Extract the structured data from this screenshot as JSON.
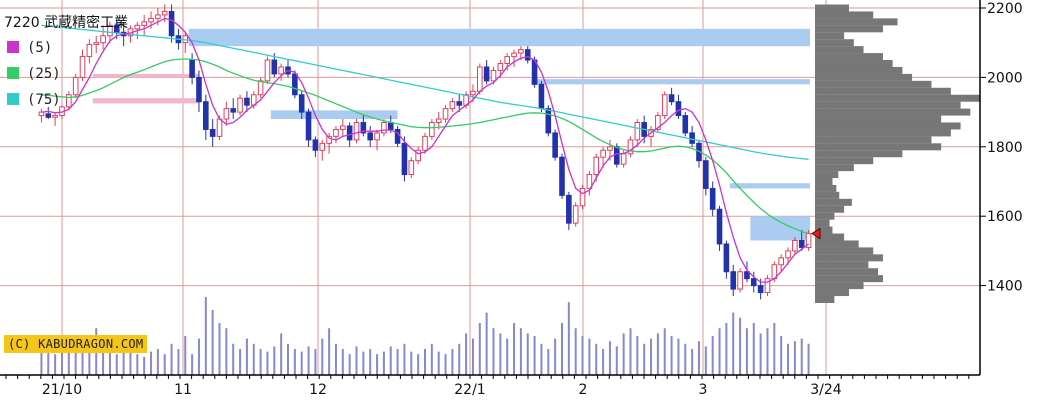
{
  "header": {
    "title": "7220 武蔵精密工業"
  },
  "legend": [
    {
      "label": "(5)",
      "color": "#cc33cc"
    },
    {
      "label": "(25)",
      "color": "#33cc66"
    },
    {
      "label": "(75)",
      "color": "#33cccc"
    }
  ],
  "credit": "(C) KABUDRAGON.COM",
  "colors": {
    "up_candle": "#e0405a",
    "down_candle": "#2233aa",
    "ma5": "#cc33cc",
    "ma25": "#33cc66",
    "ma75": "#33cccc",
    "resistance_band": "#aaccf0",
    "support_band": "#f5b5cc",
    "volume_profile": "#777777",
    "volume_bar": "#8888cc",
    "grid": "#dd9999",
    "current_marker": "#e02020"
  },
  "chart_data": {
    "type": "candlestick",
    "title": "7220 武蔵精密工業",
    "y_axis": {
      "position": "right",
      "ticks": [
        1400,
        1600,
        1800,
        2000,
        2200
      ],
      "range": [
        1150,
        2210
      ]
    },
    "x_tick_labels": [
      "21/10",
      "11",
      "12",
      "22/1",
      "2",
      "3",
      "3/24"
    ],
    "grid": true,
    "moving_averages": [
      "5",
      "25",
      "75"
    ],
    "candles_ohlc": [
      [
        1890,
        1910,
        1870,
        1900
      ],
      [
        1895,
        1915,
        1880,
        1885
      ],
      [
        1885,
        1900,
        1860,
        1890
      ],
      [
        1890,
        1920,
        1880,
        1915
      ],
      [
        1915,
        1960,
        1905,
        1950
      ],
      [
        1950,
        2010,
        1940,
        2000
      ],
      [
        2000,
        2080,
        1990,
        2060
      ],
      [
        2060,
        2110,
        2040,
        2095
      ],
      [
        2095,
        2120,
        2070,
        2100
      ],
      [
        2100,
        2150,
        2080,
        2120
      ],
      [
        2120,
        2160,
        2100,
        2150
      ],
      [
        2150,
        2170,
        2110,
        2130
      ],
      [
        2130,
        2160,
        2090,
        2120
      ],
      [
        2120,
        2150,
        2100,
        2140
      ],
      [
        2140,
        2160,
        2110,
        2150
      ],
      [
        2150,
        2180,
        2120,
        2160
      ],
      [
        2160,
        2190,
        2140,
        2170
      ],
      [
        2170,
        2200,
        2150,
        2180
      ],
      [
        2180,
        2210,
        2160,
        2190
      ],
      [
        2190,
        2210,
        2100,
        2120
      ],
      [
        2120,
        2140,
        2080,
        2100
      ],
      [
        2100,
        2130,
        2070,
        2120
      ],
      [
        2050,
        2070,
        1980,
        2000
      ],
      [
        2000,
        2020,
        1900,
        1930
      ],
      [
        1930,
        1950,
        1820,
        1850
      ],
      [
        1850,
        1880,
        1800,
        1830
      ],
      [
        1830,
        1890,
        1820,
        1880
      ],
      [
        1880,
        1930,
        1860,
        1910
      ],
      [
        1910,
        1940,
        1880,
        1900
      ],
      [
        1900,
        1950,
        1890,
        1940
      ],
      [
        1940,
        1960,
        1900,
        1920
      ],
      [
        1920,
        1960,
        1910,
        1950
      ],
      [
        1950,
        2000,
        1940,
        1990
      ],
      [
        1990,
        2060,
        1980,
        2050
      ],
      [
        2050,
        2070,
        2000,
        2010
      ],
      [
        2010,
        2040,
        1990,
        2030
      ],
      [
        2030,
        2050,
        2000,
        2010
      ],
      [
        2010,
        2020,
        1940,
        1950
      ],
      [
        1950,
        1960,
        1880,
        1900
      ],
      [
        1900,
        1910,
        1800,
        1820
      ],
      [
        1820,
        1830,
        1770,
        1790
      ],
      [
        1790,
        1820,
        1760,
        1810
      ],
      [
        1810,
        1840,
        1780,
        1830
      ],
      [
        1830,
        1860,
        1810,
        1850
      ],
      [
        1850,
        1880,
        1830,
        1860
      ],
      [
        1860,
        1870,
        1800,
        1820
      ],
      [
        1820,
        1880,
        1810,
        1870
      ],
      [
        1870,
        1890,
        1830,
        1840
      ],
      [
        1840,
        1860,
        1800,
        1820
      ],
      [
        1820,
        1850,
        1790,
        1840
      ],
      [
        1840,
        1880,
        1830,
        1870
      ],
      [
        1870,
        1890,
        1840,
        1850
      ],
      [
        1850,
        1860,
        1800,
        1810
      ],
      [
        1810,
        1830,
        1700,
        1720
      ],
      [
        1720,
        1770,
        1710,
        1760
      ],
      [
        1760,
        1800,
        1750,
        1790
      ],
      [
        1790,
        1840,
        1780,
        1830
      ],
      [
        1830,
        1880,
        1820,
        1870
      ],
      [
        1870,
        1900,
        1850,
        1880
      ],
      [
        1880,
        1920,
        1870,
        1910
      ],
      [
        1910,
        1940,
        1900,
        1930
      ],
      [
        1930,
        1950,
        1900,
        1920
      ],
      [
        1920,
        1960,
        1910,
        1950
      ],
      [
        1950,
        1980,
        1930,
        1960
      ],
      [
        1960,
        2040,
        1950,
        2030
      ],
      [
        2030,
        2050,
        1980,
        1990
      ],
      [
        1990,
        2030,
        1980,
        2020
      ],
      [
        2020,
        2050,
        2000,
        2040
      ],
      [
        2040,
        2070,
        2020,
        2060
      ],
      [
        2060,
        2080,
        2030,
        2070
      ],
      [
        2070,
        2090,
        2050,
        2080
      ],
      [
        2080,
        2090,
        2040,
        2050
      ],
      [
        2050,
        2060,
        1970,
        1980
      ],
      [
        1980,
        1990,
        1900,
        1910
      ],
      [
        1910,
        1920,
        1830,
        1840
      ],
      [
        1840,
        1850,
        1760,
        1770
      ],
      [
        1770,
        1780,
        1650,
        1660
      ],
      [
        1660,
        1670,
        1560,
        1580
      ],
      [
        1580,
        1640,
        1570,
        1630
      ],
      [
        1630,
        1690,
        1620,
        1680
      ],
      [
        1680,
        1730,
        1660,
        1720
      ],
      [
        1720,
        1780,
        1700,
        1770
      ],
      [
        1770,
        1800,
        1740,
        1790
      ],
      [
        1790,
        1820,
        1760,
        1800
      ],
      [
        1800,
        1810,
        1740,
        1750
      ],
      [
        1750,
        1790,
        1740,
        1780
      ],
      [
        1780,
        1830,
        1770,
        1820
      ],
      [
        1820,
        1880,
        1800,
        1870
      ],
      [
        1870,
        1890,
        1810,
        1830
      ],
      [
        1830,
        1860,
        1800,
        1850
      ],
      [
        1850,
        1900,
        1840,
        1890
      ],
      [
        1890,
        1960,
        1880,
        1950
      ],
      [
        1950,
        1970,
        1920,
        1930
      ],
      [
        1930,
        1950,
        1880,
        1890
      ],
      [
        1890,
        1900,
        1830,
        1840
      ],
      [
        1840,
        1860,
        1800,
        1810
      ],
      [
        1810,
        1820,
        1740,
        1760
      ],
      [
        1760,
        1770,
        1660,
        1680
      ],
      [
        1680,
        1700,
        1600,
        1620
      ],
      [
        1620,
        1630,
        1500,
        1520
      ],
      [
        1520,
        1530,
        1420,
        1440
      ],
      [
        1440,
        1460,
        1370,
        1390
      ],
      [
        1390,
        1450,
        1380,
        1440
      ],
      [
        1440,
        1470,
        1410,
        1420
      ],
      [
        1420,
        1440,
        1380,
        1400
      ],
      [
        1400,
        1420,
        1360,
        1380
      ],
      [
        1380,
        1430,
        1370,
        1420
      ],
      [
        1420,
        1470,
        1410,
        1460
      ],
      [
        1460,
        1490,
        1440,
        1480
      ],
      [
        1480,
        1510,
        1460,
        1500
      ],
      [
        1500,
        1540,
        1490,
        1530
      ],
      [
        1530,
        1560,
        1500,
        1510
      ],
      [
        1510,
        1560,
        1500,
        1550
      ]
    ],
    "ma5": [
      1900,
      1902,
      1898,
      1900,
      1908,
      1930,
      1965,
      2000,
      2040,
      2075,
      2105,
      2120,
      2125,
      2128,
      2135,
      2140,
      2150,
      2160,
      2170,
      2165,
      2150,
      2130,
      2100,
      2050,
      1980,
      1920,
      1880,
      1865,
      1870,
      1885,
      1905,
      1920,
      1935,
      1960,
      1985,
      2005,
      2020,
      2015,
      1985,
      1940,
      1890,
      1850,
      1825,
      1820,
      1830,
      1835,
      1840,
      1845,
      1845,
      1845,
      1848,
      1848,
      1840,
      1815,
      1795,
      1780,
      1785,
      1800,
      1830,
      1860,
      1890,
      1905,
      1920,
      1935,
      1960,
      1975,
      1985,
      2005,
      2030,
      2045,
      2055,
      2060,
      2050,
      2015,
      1960,
      1890,
      1810,
      1735,
      1680,
      1665,
      1675,
      1710,
      1745,
      1770,
      1780,
      1780,
      1790,
      1805,
      1825,
      1840,
      1855,
      1870,
      1890,
      1905,
      1910,
      1900,
      1870,
      1820,
      1760,
      1690,
      1610,
      1540,
      1480,
      1445,
      1425,
      1410,
      1410,
      1420,
      1440,
      1465,
      1490,
      1505,
      1520
    ],
    "ma25": [
      1950,
      1948,
      1946,
      1944,
      1942,
      1944,
      1948,
      1955,
      1962,
      1970,
      1980,
      1990,
      2000,
      2008,
      2015,
      2022,
      2030,
      2038,
      2045,
      2050,
      2052,
      2053,
      2052,
      2050,
      2045,
      2038,
      2030,
      2020,
      2012,
      2005,
      1998,
      1992,
      1988,
      1985,
      1982,
      1978,
      1974,
      1968,
      1962,
      1955,
      1948,
      1940,
      1932,
      1924,
      1916,
      1908,
      1900,
      1892,
      1886,
      1880,
      1875,
      1870,
      1866,
      1862,
      1858,
      1856,
      1855,
      1855,
      1856,
      1858,
      1860,
      1862,
      1864,
      1867,
      1870,
      1874,
      1878,
      1882,
      1886,
      1890,
      1894,
      1897,
      1898,
      1897,
      1894,
      1889,
      1882,
      1873,
      1862,
      1850,
      1838,
      1826,
      1815,
      1806,
      1798,
      1792,
      1788,
      1786,
      1786,
      1788,
      1792,
      1796,
      1800,
      1802,
      1800,
      1795,
      1787,
      1776,
      1762,
      1745,
      1725,
      1702,
      1680,
      1660,
      1640,
      1622,
      1606,
      1593,
      1582,
      1572,
      1564,
      1556,
      1550
    ],
    "ma75": [
      2150,
      2148,
      2146,
      2144,
      2142,
      2140,
      2138,
      2136,
      2134,
      2132,
      2130,
      2128,
      2126,
      2124,
      2122,
      2120,
      2118,
      2116,
      2114,
      2112,
      2110,
      2108,
      2106,
      2103,
      2100,
      2096,
      2092,
      2088,
      2084,
      2080,
      2076,
      2072,
      2068,
      2064,
      2060,
      2056,
      2052,
      2048,
      2044,
      2040,
      2036,
      2032,
      2028,
      2024,
      2020,
      2016,
      2012,
      2008,
      2004,
      2000,
      1996,
      1992,
      1988,
      1984,
      1980,
      1976,
      1972,
      1968,
      1964,
      1960,
      1956,
      1952,
      1948,
      1944,
      1940,
      1936,
      1932,
      1928,
      1925,
      1922,
      1919,
      1916,
      1913,
      1910,
      1906,
      1902,
      1898,
      1894,
      1890,
      1886,
      1882,
      1878,
      1874,
      1870,
      1866,
      1862,
      1858,
      1854,
      1850,
      1846,
      1842,
      1838,
      1834,
      1830,
      1826,
      1822,
      1818,
      1814,
      1810,
      1806,
      1802,
      1798,
      1794,
      1790,
      1786,
      1782,
      1779,
      1776,
      1773,
      1770,
      1768,
      1766,
      1764
    ],
    "volume": [
      10,
      9,
      8,
      12,
      9,
      10,
      11,
      14,
      18,
      12,
      10,
      8,
      9,
      11,
      8,
      7,
      9,
      10,
      8,
      12,
      10,
      15,
      8,
      14,
      30,
      25,
      20,
      18,
      12,
      10,
      14,
      12,
      10,
      9,
      11,
      16,
      12,
      10,
      9,
      11,
      10,
      14,
      18,
      12,
      10,
      8,
      11,
      9,
      10,
      8,
      9,
      11,
      10,
      12,
      9,
      8,
      10,
      12,
      9,
      8,
      10,
      12,
      16,
      14,
      20,
      24,
      18,
      16,
      14,
      20,
      18,
      16,
      15,
      12,
      10,
      14,
      20,
      28,
      18,
      15,
      14,
      12,
      10,
      13,
      11,
      16,
      18,
      15,
      12,
      14,
      16,
      18,
      15,
      14,
      12,
      10,
      13,
      11,
      15,
      18,
      20,
      24,
      22,
      18,
      20,
      16,
      18,
      20,
      15,
      12,
      13,
      14,
      12
    ],
    "volume_profile": [
      [
        1360,
        20
      ],
      [
        1380,
        35
      ],
      [
        1400,
        50
      ],
      [
        1420,
        70
      ],
      [
        1440,
        65
      ],
      [
        1460,
        55
      ],
      [
        1480,
        70
      ],
      [
        1500,
        60
      ],
      [
        1520,
        45
      ],
      [
        1540,
        30
      ],
      [
        1560,
        18
      ],
      [
        1580,
        15
      ],
      [
        1600,
        20
      ],
      [
        1620,
        30
      ],
      [
        1640,
        38
      ],
      [
        1660,
        25
      ],
      [
        1680,
        22
      ],
      [
        1700,
        18
      ],
      [
        1720,
        24
      ],
      [
        1740,
        40
      ],
      [
        1760,
        60
      ],
      [
        1780,
        90
      ],
      [
        1800,
        130
      ],
      [
        1820,
        120
      ],
      [
        1840,
        140
      ],
      [
        1860,
        150
      ],
      [
        1880,
        130
      ],
      [
        1900,
        160
      ],
      [
        1920,
        150
      ],
      [
        1940,
        170
      ],
      [
        1960,
        140
      ],
      [
        1980,
        120
      ],
      [
        2000,
        100
      ],
      [
        2020,
        90
      ],
      [
        2040,
        80
      ],
      [
        2060,
        70
      ],
      [
        2080,
        50
      ],
      [
        2100,
        40
      ],
      [
        2120,
        30
      ],
      [
        2140,
        70
      ],
      [
        2160,
        85
      ],
      [
        2180,
        60
      ],
      [
        2200,
        35
      ]
    ],
    "resistance_zones": [
      {
        "from_index": 22,
        "to_index": 117,
        "low": 2090,
        "high": 2140
      },
      {
        "from_index": 72,
        "to_index": 117,
        "low": 1980,
        "high": 1995
      },
      {
        "from_index": 34,
        "to_index": 52,
        "low": 1880,
        "high": 1905
      },
      {
        "from_index": 101,
        "to_index": 117,
        "low": 1680,
        "high": 1695
      },
      {
        "from_index": 104,
        "to_index": 117,
        "low": 1530,
        "high": 1600
      }
    ],
    "support_zones": [
      {
        "from_index": 8,
        "to_index": 23,
        "low": 1925,
        "high": 1940
      },
      {
        "from_index": 8,
        "to_index": 23,
        "low": 2000,
        "high": 2010
      }
    ],
    "current_price": 1550
  }
}
